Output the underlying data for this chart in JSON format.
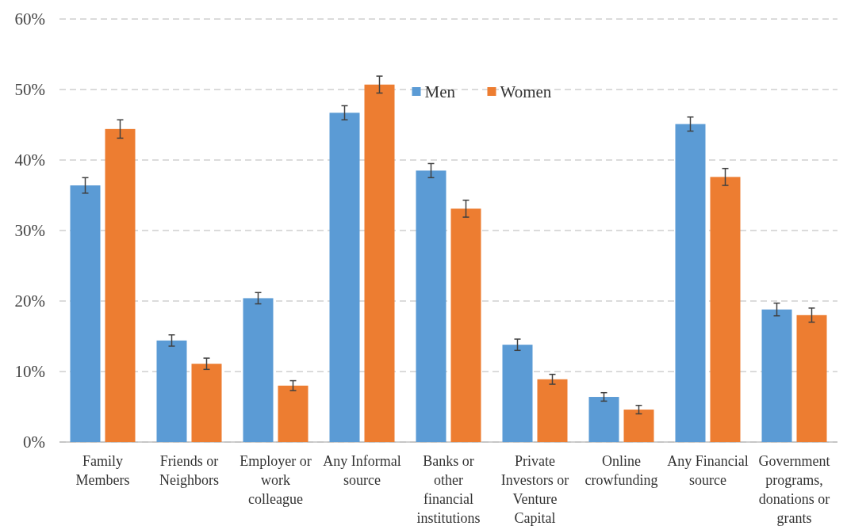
{
  "chart_data": {
    "type": "bar",
    "categories": [
      "Family Members",
      "Friends or Neighbors",
      "Employer or work colleague",
      "Any Informal source",
      "Banks or other financial institutions",
      "Private Investors or Venture Capital",
      "Online crowfunding",
      "Any Financial source",
      "Government programs, donations or grants"
    ],
    "series": [
      {
        "name": "Men",
        "color": "#5b9bd5",
        "values": [
          36.4,
          14.4,
          20.4,
          46.7,
          38.5,
          13.8,
          6.4,
          45.1,
          18.8
        ],
        "errors": [
          1.1,
          0.8,
          0.8,
          1.0,
          1.0,
          0.8,
          0.6,
          1.0,
          0.9
        ]
      },
      {
        "name": "Women",
        "color": "#ed7d31",
        "values": [
          44.4,
          11.1,
          8.0,
          50.7,
          33.1,
          8.9,
          4.6,
          37.6,
          18.0
        ],
        "errors": [
          1.3,
          0.8,
          0.7,
          1.2,
          1.2,
          0.7,
          0.6,
          1.2,
          1.0
        ]
      }
    ],
    "ylim": [
      0,
      60
    ],
    "yticks": [
      {
        "value": 0,
        "label": "0%"
      },
      {
        "value": 10,
        "label": "10%"
      },
      {
        "value": 20,
        "label": "20%"
      },
      {
        "value": 30,
        "label": "30%"
      },
      {
        "value": 40,
        "label": "40%"
      },
      {
        "value": 50,
        "label": "50%"
      },
      {
        "value": 60,
        "label": "60%"
      }
    ],
    "grid": "y",
    "legend": "top"
  }
}
